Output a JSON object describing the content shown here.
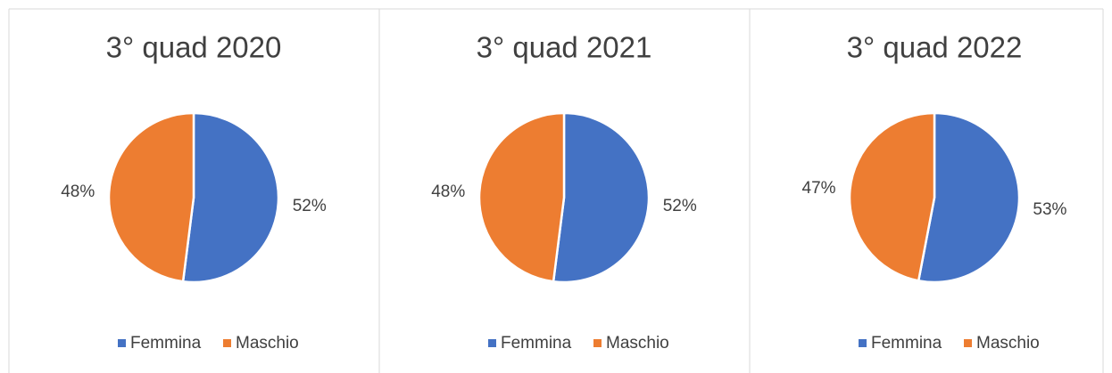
{
  "chart_data": [
    {
      "type": "pie",
      "title": "3° quad 2020",
      "categories": [
        "Femmina",
        "Maschio"
      ],
      "values": [
        52,
        48
      ],
      "value_labels": [
        "52%",
        "48%"
      ],
      "colors": [
        "#4472c4",
        "#ed7d31"
      ]
    },
    {
      "type": "pie",
      "title": "3° quad 2021",
      "categories": [
        "Femmina",
        "Maschio"
      ],
      "values": [
        52,
        48
      ],
      "value_labels": [
        "52%",
        "48%"
      ],
      "colors": [
        "#4472c4",
        "#ed7d31"
      ]
    },
    {
      "type": "pie",
      "title": "3° quad 2022",
      "categories": [
        "Femmina",
        "Maschio"
      ],
      "values": [
        53,
        47
      ],
      "value_labels": [
        "53%",
        "47%"
      ],
      "colors": [
        "#4472c4",
        "#ed7d31"
      ]
    }
  ]
}
